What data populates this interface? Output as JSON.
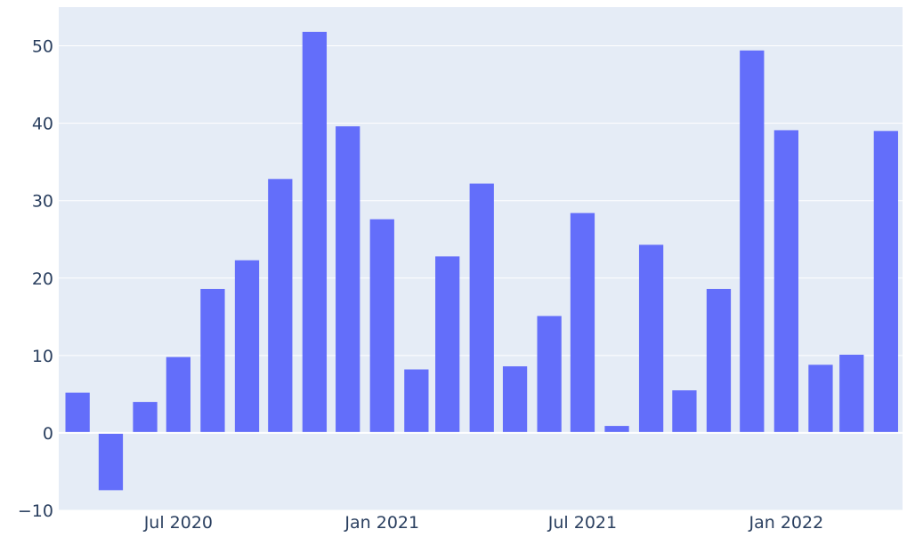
{
  "chart_data": {
    "type": "bar",
    "title": "",
    "xlabel": "",
    "ylabel": "",
    "categories": [
      "Apr 2020",
      "May 2020",
      "Jun 2020",
      "Jul 2020",
      "Aug 2020",
      "Sep 2020",
      "Oct 2020",
      "Nov 2020",
      "Dec 2020",
      "Jan 2021",
      "Feb 2021",
      "Mar 2021",
      "Apr 2021",
      "May 2021",
      "Jun 2021",
      "Jul 2021",
      "Aug 2021",
      "Sep 2021",
      "Oct 2021",
      "Nov 2021",
      "Dec 2021",
      "Jan 2022",
      "Feb 2022",
      "Mar 2022",
      "Apr 2022"
    ],
    "values": [
      5.2,
      -7.4,
      4.0,
      9.8,
      18.6,
      22.3,
      32.8,
      51.8,
      39.6,
      27.6,
      8.2,
      22.8,
      32.2,
      8.6,
      15.1,
      28.4,
      0.9,
      24.3,
      5.5,
      18.6,
      49.4,
      39.1,
      8.8,
      10.1,
      39.0
    ],
    "ylim": [
      -10,
      55
    ],
    "yticks": [
      -10,
      0,
      10,
      20,
      30,
      40,
      50
    ],
    "ytick_labels": [
      "−10",
      "0",
      "10",
      "20",
      "30",
      "40",
      "50"
    ],
    "xticks": [
      {
        "position": "2020-07-01",
        "label": "Jul 2020"
      },
      {
        "position": "2021-01-01",
        "label": "Jan 2021"
      },
      {
        "position": "2021-07-01",
        "label": "Jul 2021"
      },
      {
        "position": "2022-01-01",
        "label": "Jan 2022"
      }
    ],
    "x_range": [
      "2020-03-15",
      "2022-04-16"
    ],
    "grid": true,
    "colors": {
      "bar": "#636efa",
      "plot_background": "#e5ecf6",
      "grid": "#ffffff",
      "tick_text": "#2a3f5f"
    }
  }
}
